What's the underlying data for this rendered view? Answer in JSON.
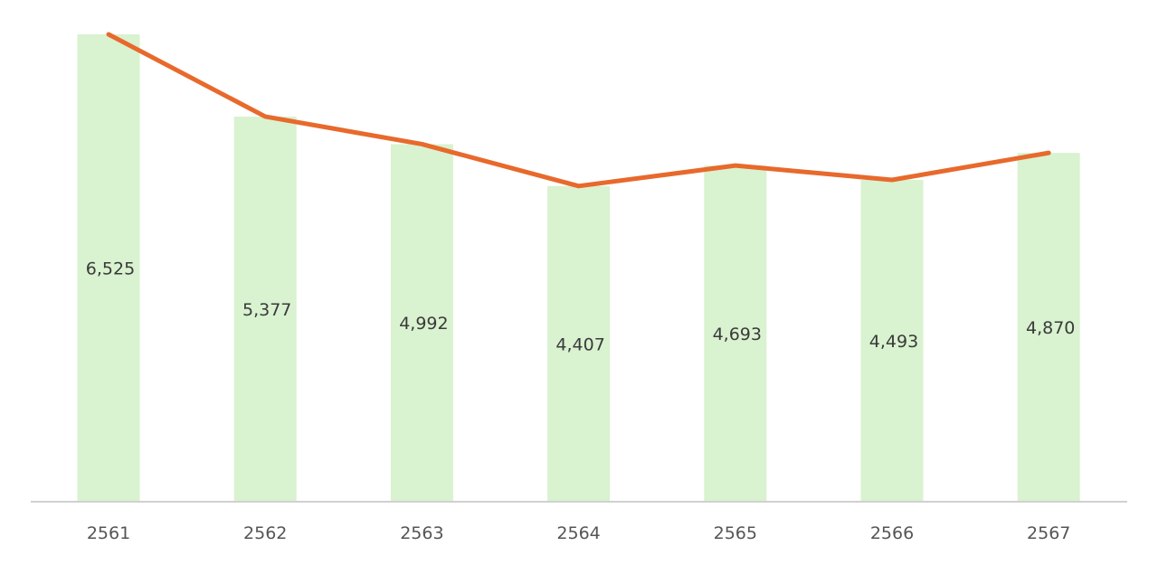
{
  "chart_data": {
    "type": "bar",
    "categories": [
      "2561",
      "2562",
      "2563",
      "2564",
      "2565",
      "2566",
      "2567"
    ],
    "series": [
      {
        "type": "bar",
        "values": [
          6525,
          5377,
          4992,
          4407,
          4693,
          4493,
          4870
        ],
        "color": "#d9f2d0"
      },
      {
        "type": "line",
        "values": [
          6525,
          5377,
          4992,
          4407,
          4693,
          4493,
          4870
        ],
        "color": "#e8692c"
      }
    ],
    "value_labels": [
      "6,525",
      "5,377",
      "4,992",
      "4,407",
      "4,693",
      "4,493",
      "4,870"
    ],
    "ylim": [
      0,
      6525
    ],
    "grid": false,
    "axis_color": "#d0d0d0"
  }
}
